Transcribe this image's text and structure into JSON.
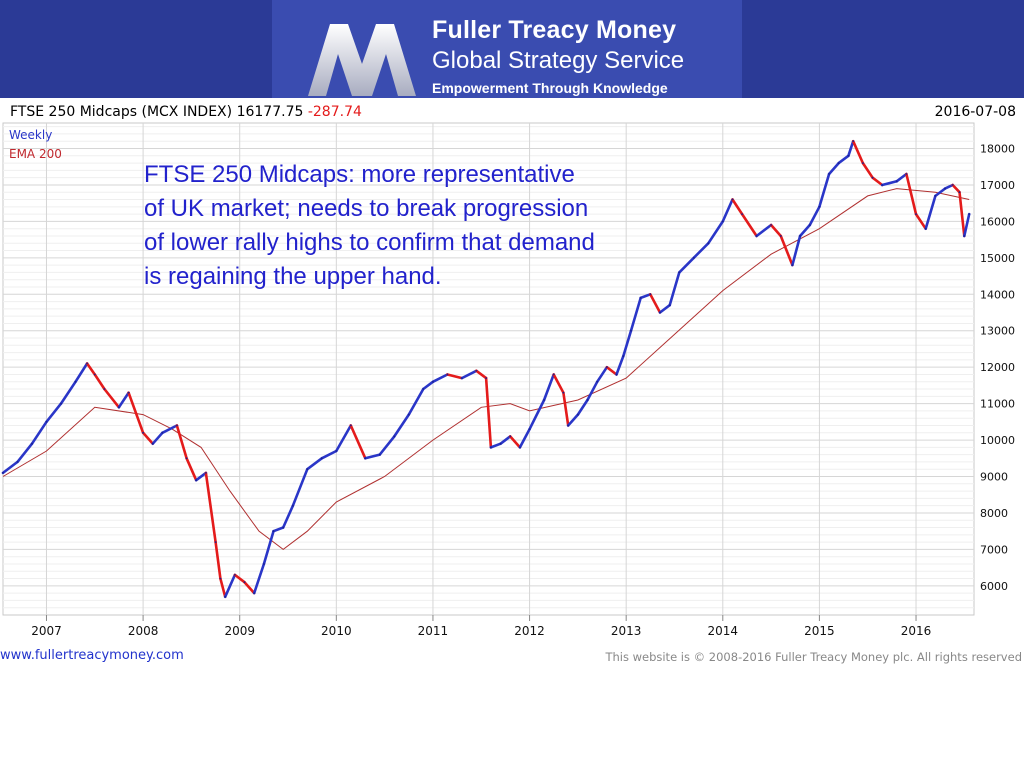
{
  "brand": {
    "name": "Fuller Treacy Money",
    "service": "Global Strategy Service",
    "tagline": "Empowerment Through Knowledge"
  },
  "chart_header": {
    "title": "FTSE 250 Midcaps (MCX INDEX)",
    "last": "16177.75",
    "change": "-287.74",
    "date": "2016-07-08"
  },
  "legend": {
    "weekly": "Weekly",
    "ema": "EMA 200"
  },
  "annotation": {
    "lines": [
      "FTSE 250 Midcaps: more representative",
      "of UK market; needs to break progression",
      "of lower rally highs to confirm that demand",
      "is regaining the upper hand."
    ]
  },
  "footer": {
    "url": "www.fullertreacymoney.com",
    "copyright": "This website is © 2008-2016 Fuller Treacy Money plc. All rights reserved"
  },
  "colors": {
    "up": "#2a36c8",
    "down": "#e41b1b",
    "ema": "#b03030",
    "banner": "#2b3a96"
  },
  "chart_data": {
    "type": "line",
    "title": "FTSE 250 Midcaps (MCX INDEX)",
    "frequency": "Weekly",
    "x_ticks": [
      "2007",
      "2008",
      "2009",
      "2010",
      "2011",
      "2012",
      "2013",
      "2014",
      "2015",
      "2016"
    ],
    "y_ticks": [
      6000,
      7000,
      8000,
      9000,
      10000,
      11000,
      12000,
      13000,
      14000,
      15000,
      16000,
      17000,
      18000
    ],
    "xlim": [
      2006.55,
      2016.6
    ],
    "ylim": [
      5200,
      18700
    ],
    "grid": true,
    "series": [
      {
        "name": "Weekly",
        "points": [
          [
            2006.55,
            9100
          ],
          [
            2006.7,
            9400
          ],
          [
            2006.85,
            9900
          ],
          [
            2007.0,
            10500
          ],
          [
            2007.15,
            11000
          ],
          [
            2007.3,
            11600
          ],
          [
            2007.42,
            12100
          ],
          [
            2007.5,
            11800
          ],
          [
            2007.6,
            11400
          ],
          [
            2007.75,
            10900
          ],
          [
            2007.85,
            11300
          ],
          [
            2008.0,
            10200
          ],
          [
            2008.1,
            9900
          ],
          [
            2008.2,
            10200
          ],
          [
            2008.35,
            10400
          ],
          [
            2008.45,
            9500
          ],
          [
            2008.55,
            8900
          ],
          [
            2008.65,
            9100
          ],
          [
            2008.75,
            7200
          ],
          [
            2008.8,
            6200
          ],
          [
            2008.85,
            5700
          ],
          [
            2008.95,
            6300
          ],
          [
            2009.05,
            6100
          ],
          [
            2009.15,
            5800
          ],
          [
            2009.25,
            6600
          ],
          [
            2009.35,
            7500
          ],
          [
            2009.45,
            7600
          ],
          [
            2009.55,
            8200
          ],
          [
            2009.7,
            9200
          ],
          [
            2009.85,
            9500
          ],
          [
            2010.0,
            9700
          ],
          [
            2010.15,
            10400
          ],
          [
            2010.3,
            9500
          ],
          [
            2010.45,
            9600
          ],
          [
            2010.6,
            10100
          ],
          [
            2010.75,
            10700
          ],
          [
            2010.9,
            11400
          ],
          [
            2011.0,
            11600
          ],
          [
            2011.15,
            11800
          ],
          [
            2011.3,
            11700
          ],
          [
            2011.45,
            11900
          ],
          [
            2011.55,
            11700
          ],
          [
            2011.6,
            9800
          ],
          [
            2011.7,
            9900
          ],
          [
            2011.8,
            10100
          ],
          [
            2011.9,
            9800
          ],
          [
            2012.0,
            10300
          ],
          [
            2012.15,
            11100
          ],
          [
            2012.25,
            11800
          ],
          [
            2012.35,
            11300
          ],
          [
            2012.4,
            10400
          ],
          [
            2012.5,
            10700
          ],
          [
            2012.6,
            11100
          ],
          [
            2012.7,
            11600
          ],
          [
            2012.8,
            12000
          ],
          [
            2012.9,
            11800
          ],
          [
            2012.97,
            12300
          ],
          [
            2013.05,
            13000
          ],
          [
            2013.15,
            13900
          ],
          [
            2013.25,
            14000
          ],
          [
            2013.35,
            13500
          ],
          [
            2013.45,
            13700
          ],
          [
            2013.55,
            14600
          ],
          [
            2013.7,
            15000
          ],
          [
            2013.85,
            15400
          ],
          [
            2014.0,
            16000
          ],
          [
            2014.1,
            16600
          ],
          [
            2014.2,
            16200
          ],
          [
            2014.35,
            15600
          ],
          [
            2014.5,
            15900
          ],
          [
            2014.6,
            15600
          ],
          [
            2014.72,
            14800
          ],
          [
            2014.8,
            15600
          ],
          [
            2014.9,
            15900
          ],
          [
            2015.0,
            16400
          ],
          [
            2015.1,
            17300
          ],
          [
            2015.2,
            17600
          ],
          [
            2015.3,
            17800
          ],
          [
            2015.35,
            18200
          ],
          [
            2015.45,
            17600
          ],
          [
            2015.55,
            17200
          ],
          [
            2015.65,
            17000
          ],
          [
            2015.8,
            17100
          ],
          [
            2015.9,
            17300
          ],
          [
            2016.0,
            16200
          ],
          [
            2016.1,
            15800
          ],
          [
            2016.2,
            16700
          ],
          [
            2016.3,
            16900
          ],
          [
            2016.38,
            17000
          ],
          [
            2016.45,
            16800
          ],
          [
            2016.5,
            15600
          ],
          [
            2016.55,
            16200
          ]
        ]
      },
      {
        "name": "EMA 200",
        "points": [
          [
            2006.55,
            9000
          ],
          [
            2007.0,
            9700
          ],
          [
            2007.5,
            10900
          ],
          [
            2008.0,
            10700
          ],
          [
            2008.3,
            10300
          ],
          [
            2008.6,
            9800
          ],
          [
            2008.9,
            8600
          ],
          [
            2009.2,
            7500
          ],
          [
            2009.45,
            7000
          ],
          [
            2009.7,
            7500
          ],
          [
            2010.0,
            8300
          ],
          [
            2010.5,
            9000
          ],
          [
            2011.0,
            10000
          ],
          [
            2011.5,
            10900
          ],
          [
            2011.8,
            11000
          ],
          [
            2012.0,
            10800
          ],
          [
            2012.5,
            11100
          ],
          [
            2013.0,
            11700
          ],
          [
            2013.5,
            12900
          ],
          [
            2014.0,
            14100
          ],
          [
            2014.5,
            15100
          ],
          [
            2015.0,
            15800
          ],
          [
            2015.5,
            16700
          ],
          [
            2015.8,
            16900
          ],
          [
            2016.2,
            16800
          ],
          [
            2016.55,
            16600
          ]
        ]
      }
    ]
  }
}
